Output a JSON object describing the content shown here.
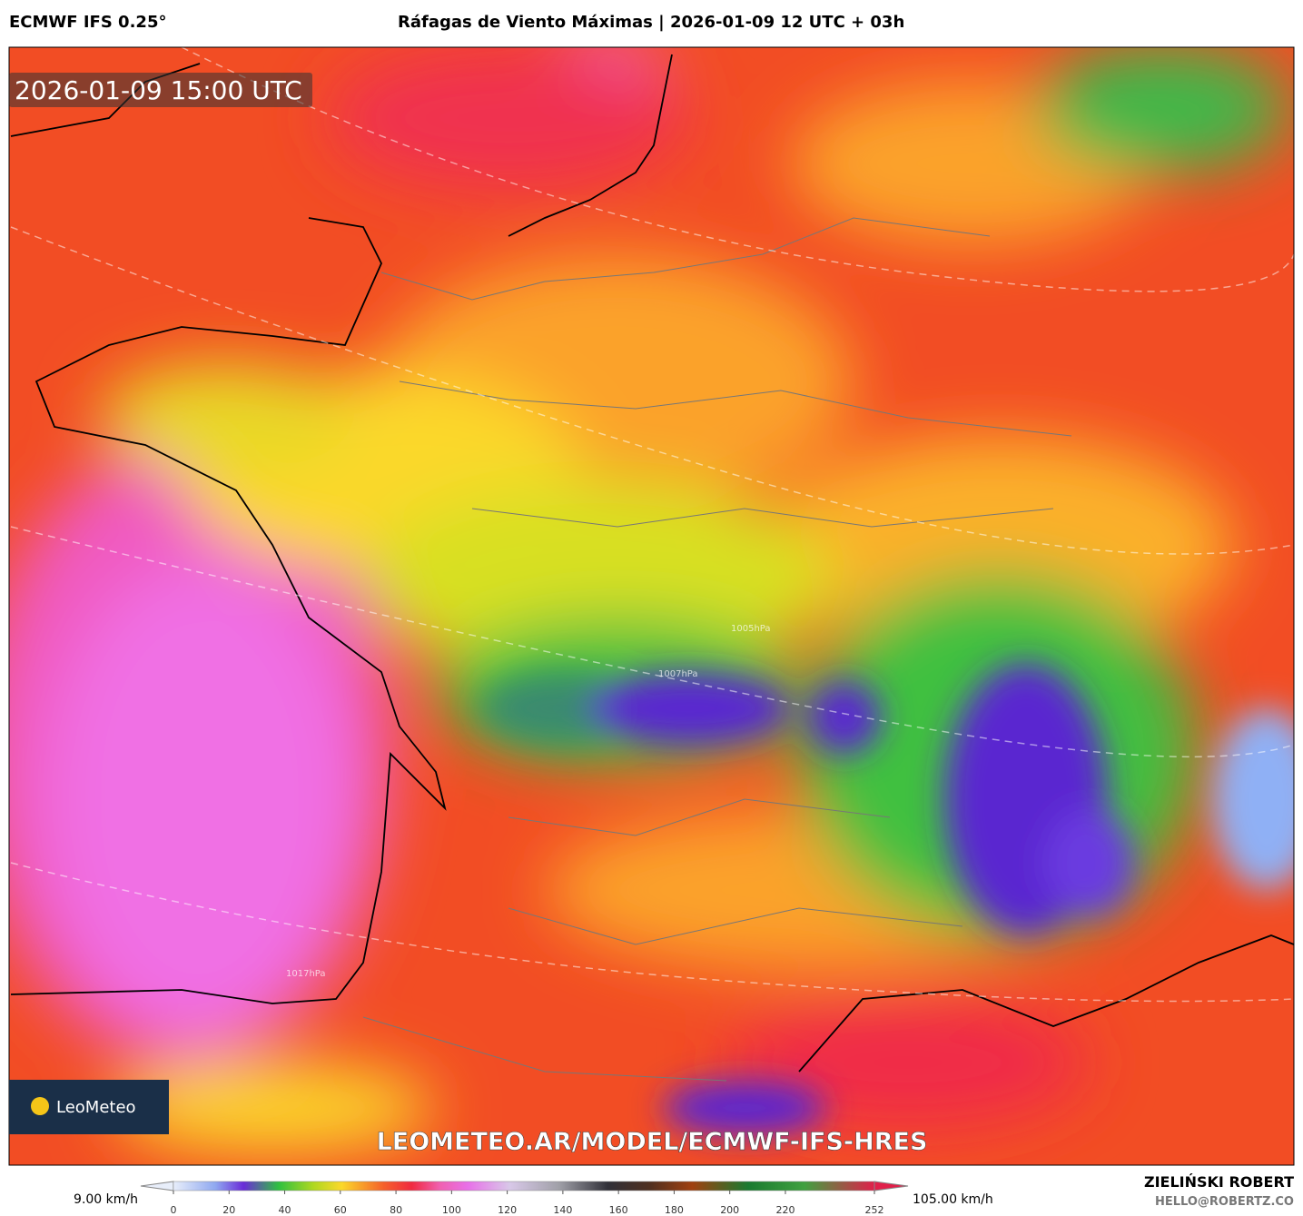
{
  "header": {
    "model": "ECMWF IFS 0.25°",
    "title": "Ráfagas de Viento Máximas | 2026-01-09 12 UTC + 03h"
  },
  "map": {
    "valid_time": "2026-01-09 15:00 UTC",
    "logo": "LeoMeteo",
    "watermark": "LEOMETEO.AR/MODEL/ECMWF-IFS-HRES",
    "isobar_labels": [
      "1007hPa",
      "1005hPa",
      "1017hPa"
    ]
  },
  "colorbar": {
    "min_label": "9.00 km/h",
    "max_label": "105.00 km/h",
    "ticks": [
      0,
      20,
      40,
      60,
      80,
      100,
      120,
      140,
      160,
      180,
      200,
      220,
      252
    ]
  },
  "footer": {
    "author": "ZIELIŃSKI ROBERT",
    "contact": "HELLO@ROBERTZ.CO"
  }
}
